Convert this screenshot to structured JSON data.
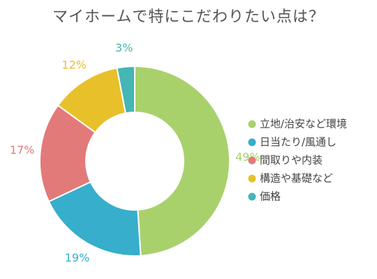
{
  "chart_data": {
    "type": "pie",
    "title": "マイホームで特にこだわりたい点は？",
    "donut": true,
    "legend_position": "right",
    "slices": [
      {
        "label": "立地/治安など環境",
        "value": 49,
        "value_label": "49%",
        "color": "#a8d16c"
      },
      {
        "label": "日当たり/風通し",
        "value": 19,
        "value_label": "19%",
        "color": "#37aecb"
      },
      {
        "label": "間取りや内装",
        "value": 17,
        "value_label": "17%",
        "color": "#e27a7a"
      },
      {
        "label": "構造や基礎など",
        "value": 12,
        "value_label": "12%",
        "color": "#e8c02a"
      },
      {
        "label": "価格",
        "value": 3,
        "value_label": "3%",
        "color": "#44b6b4"
      }
    ]
  }
}
